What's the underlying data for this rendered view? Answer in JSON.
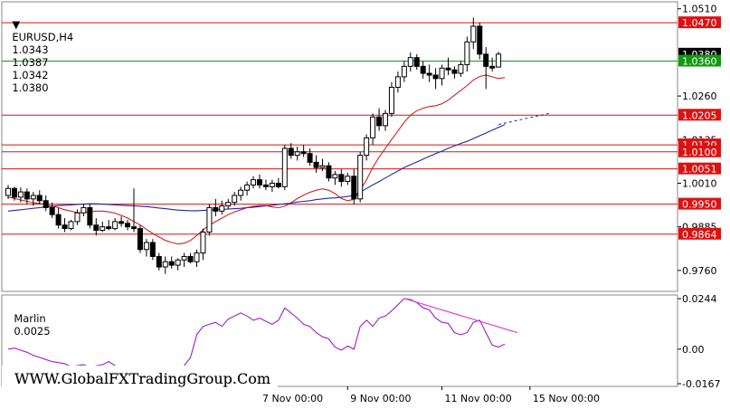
{
  "chart_data": [
    {
      "type": "candlestick",
      "symbol": "EURUSD",
      "timeframe": "H4",
      "ohlc_header": [
        "1.0343",
        "1.0387",
        "1.0342",
        "1.0380"
      ],
      "y_ticks": [
        "1.0510",
        "1.0260",
        "1.0135",
        "1.0010",
        "0.9885",
        "0.9760"
      ],
      "ylim": [
        0.97,
        1.053
      ],
      "x_tick_labels": [
        "7 Nov 00:00",
        "9 Nov 00:00",
        "11 Nov 00:00",
        "15 Nov 00:00"
      ],
      "horizontal_levels": [
        {
          "label": "1.0470",
          "value": 1.047,
          "color": "#dd1111"
        },
        {
          "label": "1.0380",
          "value": 1.038,
          "color": "#000000"
        },
        {
          "label": "1.0360",
          "value": 1.036,
          "color": "#119911"
        },
        {
          "label": "1.0205",
          "value": 1.0205,
          "color": "#dd1111"
        },
        {
          "label": "1.0120",
          "value": 1.012,
          "color": "#dd1111"
        },
        {
          "label": "1.0100",
          "value": 1.01,
          "color": "#dd1111"
        },
        {
          "label": "1.0051",
          "value": 1.0051,
          "color": "#dd1111"
        },
        {
          "label": "0.9950",
          "value": 0.995,
          "color": "#dd1111"
        },
        {
          "label": "0.9864",
          "value": 0.9864,
          "color": "#dd1111"
        }
      ],
      "candles": [
        [
          0.9975,
          1.0005,
          0.9965,
          0.9995
        ],
        [
          0.9995,
          1.0,
          0.996,
          0.997
        ],
        [
          0.997,
          0.9998,
          0.9955,
          0.9985
        ],
        [
          0.9985,
          0.9995,
          0.995,
          0.9965
        ],
        [
          0.9965,
          0.9985,
          0.9945,
          0.9975
        ],
        [
          0.9975,
          0.999,
          0.995,
          0.996
        ],
        [
          0.996,
          0.9975,
          0.993,
          0.994
        ],
        [
          0.994,
          0.9955,
          0.991,
          0.992
        ],
        [
          0.992,
          0.994,
          0.988,
          0.989
        ],
        [
          0.989,
          0.991,
          0.987,
          0.988
        ],
        [
          0.988,
          0.9905,
          0.9875,
          0.99
        ],
        [
          0.99,
          0.9935,
          0.989,
          0.9925
        ],
        [
          0.9925,
          0.995,
          0.9915,
          0.994
        ],
        [
          0.994,
          0.995,
          0.988,
          0.989
        ],
        [
          0.989,
          0.991,
          0.986,
          0.9875
        ],
        [
          0.9875,
          0.99,
          0.987,
          0.9885
        ],
        [
          0.9885,
          0.9905,
          0.9875,
          0.988
        ],
        [
          0.988,
          0.991,
          0.9875,
          0.99
        ],
        [
          0.99,
          0.9915,
          0.9885,
          0.9895
        ],
        [
          0.9895,
          0.9905,
          0.9875,
          0.9885
        ],
        [
          0.9885,
          0.9995,
          0.987,
          0.988
        ],
        [
          0.988,
          0.989,
          0.981,
          0.982
        ],
        [
          0.982,
          0.985,
          0.98,
          0.984
        ],
        [
          0.984,
          0.985,
          0.979,
          0.98
        ],
        [
          0.98,
          0.981,
          0.976,
          0.977
        ],
        [
          0.977,
          0.98,
          0.975,
          0.9785
        ],
        [
          0.9785,
          0.98,
          0.9765,
          0.9775
        ],
        [
          0.9775,
          0.9795,
          0.976,
          0.979
        ],
        [
          0.979,
          0.981,
          0.977,
          0.98
        ],
        [
          0.98,
          0.981,
          0.978,
          0.9785
        ],
        [
          0.9785,
          0.982,
          0.977,
          0.981
        ],
        [
          0.981,
          0.988,
          0.979,
          0.987
        ],
        [
          0.987,
          0.995,
          0.986,
          0.994
        ],
        [
          0.994,
          0.9965,
          0.9915,
          0.993
        ],
        [
          0.993,
          0.996,
          0.992,
          0.9945
        ],
        [
          0.9945,
          0.9965,
          0.9935,
          0.9955
        ],
        [
          0.9955,
          0.9985,
          0.9945,
          0.9975
        ],
        [
          0.9975,
          1.0,
          0.996,
          0.999
        ],
        [
          0.999,
          1.0015,
          0.9975,
          1.0005
        ],
        [
          1.0005,
          1.003,
          0.9995,
          1.002
        ],
        [
          1.002,
          1.0035,
          0.9995,
          1.0005
        ],
        [
          1.0005,
          1.002,
          0.999,
          1.0
        ],
        [
          1.0,
          1.002,
          0.9985,
          1.001
        ],
        [
          1.001,
          1.0025,
          0.9995,
          1.0
        ],
        [
          1.0,
          1.012,
          0.999,
          1.011
        ],
        [
          1.011,
          1.0125,
          1.008,
          1.009
        ],
        [
          1.009,
          1.0115,
          1.0075,
          1.01
        ],
        [
          1.01,
          1.012,
          1.0085,
          1.0095
        ],
        [
          1.0095,
          1.011,
          1.006,
          1.007
        ],
        [
          1.007,
          1.009,
          1.004,
          1.0055
        ],
        [
          1.0055,
          1.008,
          1.0045,
          1.006
        ],
        [
          1.006,
          1.007,
          1.0015,
          1.0025
        ],
        [
          1.0025,
          1.0045,
          1.0005,
          1.0035
        ],
        [
          1.0035,
          1.005,
          1.0,
          1.0015
        ],
        [
          1.0015,
          1.004,
          1.0005,
          1.003
        ],
        [
          1.003,
          1.005,
          0.995,
          0.9965
        ],
        [
          0.9965,
          1.01,
          0.9955,
          1.009
        ],
        [
          1.009,
          1.015,
          1.0075,
          1.014
        ],
        [
          1.014,
          1.021,
          1.012,
          1.02
        ],
        [
          1.02,
          1.0225,
          1.016,
          1.0175
        ],
        [
          1.0175,
          1.022,
          1.016,
          1.021
        ],
        [
          1.021,
          1.03,
          1.02,
          1.0285
        ],
        [
          1.0285,
          1.033,
          1.027,
          1.0315
        ],
        [
          1.0315,
          1.036,
          1.03,
          1.0345
        ],
        [
          1.0345,
          1.0385,
          1.033,
          1.037
        ],
        [
          1.037,
          1.038,
          1.0335,
          1.0345
        ],
        [
          1.0345,
          1.036,
          1.031,
          1.0325
        ],
        [
          1.0325,
          1.035,
          1.03,
          1.032
        ],
        [
          1.032,
          1.034,
          1.028,
          1.031
        ],
        [
          1.031,
          1.035,
          1.029,
          1.034
        ],
        [
          1.034,
          1.037,
          1.032,
          1.0335
        ],
        [
          1.0335,
          1.0345,
          1.031,
          1.0325
        ],
        [
          1.0325,
          1.036,
          1.0315,
          1.035
        ],
        [
          1.035,
          1.043,
          1.033,
          1.0415
        ],
        [
          1.0415,
          1.0485,
          1.0395,
          1.046
        ],
        [
          1.046,
          1.047,
          1.0365,
          1.038
        ],
        [
          1.038,
          1.04,
          1.028,
          1.0345
        ],
        [
          1.0345,
          1.037,
          1.033,
          1.034
        ],
        [
          1.0343,
          1.0387,
          1.0342,
          1.038
        ]
      ],
      "moving_averages": [
        {
          "color": "#cc2222",
          "values": [
            0.997,
            0.9966,
            0.9962,
            0.9958,
            0.9954,
            0.9952,
            0.9948,
            0.9944,
            0.994,
            0.9934,
            0.993,
            0.9926,
            0.9926,
            0.9928,
            0.993,
            0.993,
            0.9928,
            0.9924,
            0.9918,
            0.991,
            0.99,
            0.989,
            0.9878,
            0.9866,
            0.9856,
            0.9846,
            0.984,
            0.9836,
            0.9838,
            0.9846,
            0.986,
            0.9876,
            0.989,
            0.99,
            0.991,
            0.992,
            0.9928,
            0.9934,
            0.994,
            0.9944,
            0.9946,
            0.9946,
            0.9942,
            0.994,
            0.9944,
            0.9954,
            0.9966,
            0.9976,
            0.9984,
            0.999,
            0.9994,
            0.999,
            0.998,
            0.9966,
            0.996,
            0.9964,
            0.999,
            1.002,
            1.0055,
            1.0085,
            1.011,
            1.0135,
            1.016,
            1.0185,
            1.0205,
            1.0218,
            1.0225,
            1.023,
            1.0232,
            1.0238,
            1.0248,
            1.0262,
            1.0276,
            1.029,
            1.0306,
            1.0316,
            1.032,
            1.0315,
            1.031,
            1.0313
          ]
        },
        {
          "color": "#1a2aa8",
          "values": [
            0.993,
            0.9932,
            0.9934,
            0.9936,
            0.9938,
            0.994,
            0.9942,
            0.9944,
            0.9946,
            0.9947,
            0.9948,
            0.9949,
            0.995,
            0.9951,
            0.9951,
            0.995,
            0.9949,
            0.9948,
            0.9947,
            0.9946,
            0.9945,
            0.9944,
            0.9943,
            0.9941,
            0.9939,
            0.9937,
            0.9935,
            0.9933,
            0.9932,
            0.9931,
            0.9931,
            0.9932,
            0.9933,
            0.9934,
            0.9935,
            0.9936,
            0.9937,
            0.9938,
            0.994,
            0.9941,
            0.9943,
            0.9945,
            0.9947,
            0.9949,
            0.9951,
            0.9953,
            0.9956,
            0.9958,
            0.996,
            0.9963,
            0.9965,
            0.9967,
            0.9968,
            0.997,
            0.9972,
            0.9975,
            0.9985,
            0.9995,
            1.0005,
            1.0015,
            1.0025,
            1.0035,
            1.0045,
            1.0055,
            1.0063,
            1.0071,
            1.0079,
            1.0087,
            1.0095,
            1.0102,
            1.011,
            1.0117,
            1.0124,
            1.013,
            1.0138,
            1.0146,
            1.0154,
            1.0162,
            1.017,
            1.0178
          ]
        }
      ],
      "ma_dashed_extension": [
        1.0178,
        1.0186,
        1.0194,
        1.0202,
        1.021
      ]
    },
    {
      "type": "line",
      "name": "Marlin",
      "value_label": "0.0025",
      "y_ticks": [
        "0.0244",
        "0.00",
        "-0.0167"
      ],
      "ylim": [
        -0.018,
        0.0262
      ],
      "series": [
        {
          "color": "#a020c0",
          "values": [
            0.0,
            0.0005,
            -0.0005,
            -0.0015,
            -0.003,
            -0.004,
            -0.005,
            -0.006,
            -0.0065,
            -0.007,
            -0.0085,
            -0.008,
            -0.0075,
            -0.009,
            -0.008,
            -0.0075,
            -0.006,
            -0.008,
            -0.01,
            -0.0115,
            -0.012,
            -0.0125,
            -0.013,
            -0.014,
            -0.015,
            -0.016,
            -0.0145,
            -0.011,
            -0.008,
            -0.004,
            0.007,
            0.011,
            0.012,
            0.013,
            0.011,
            0.0145,
            0.016,
            0.0175,
            0.016,
            0.014,
            0.015,
            0.0135,
            0.012,
            0.014,
            0.02,
            0.0175,
            0.015,
            0.012,
            0.011,
            0.008,
            0.006,
            0.005,
            0.001,
            -0.0005,
            0.0015,
            0.0,
            0.011,
            0.014,
            0.011,
            0.015,
            0.016,
            0.0185,
            0.0215,
            0.0245,
            0.024,
            0.0225,
            0.02,
            0.019,
            0.015,
            0.013,
            0.0125,
            0.008,
            0.007,
            0.008,
            0.013,
            0.014,
            0.008,
            0.002,
            0.001,
            0.0025
          ]
        }
      ],
      "divergence_line": {
        "from_value": 0.0245,
        "to_value": 0.008,
        "color": "#d63ad6"
      }
    }
  ],
  "watermark": "WWW.GlobalFXTradingGroup.Com"
}
